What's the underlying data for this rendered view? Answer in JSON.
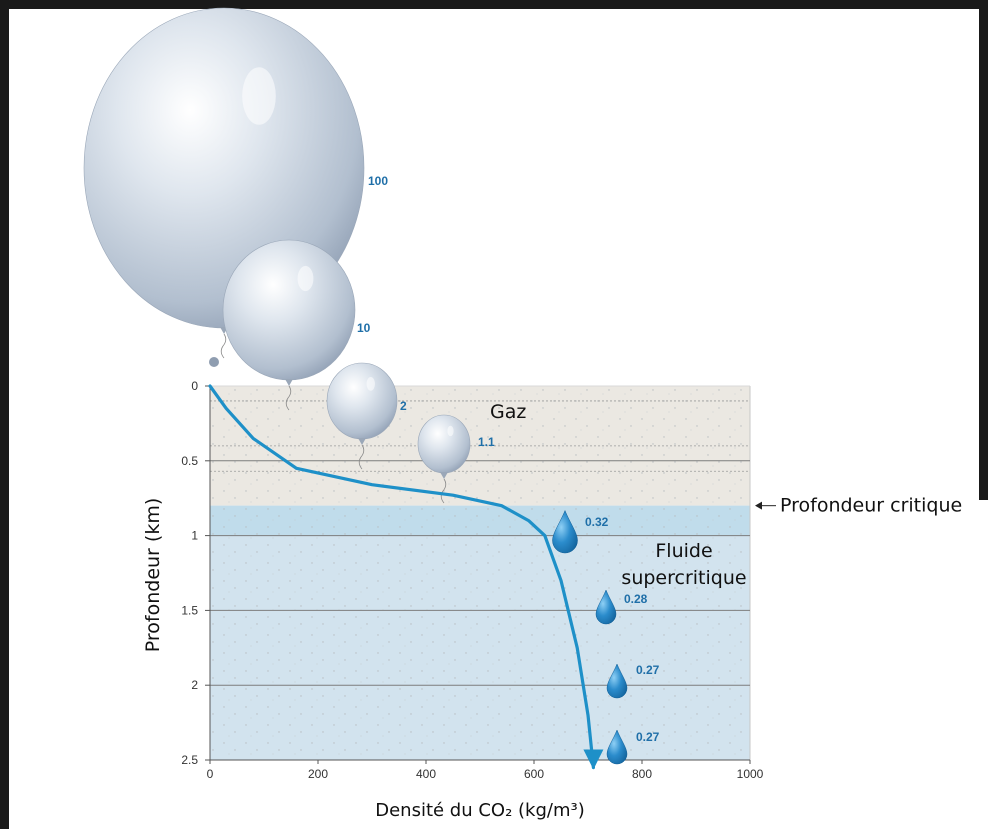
{
  "chart_data": {
    "type": "line",
    "xlabel": "Densité du CO₂ (kg/m³)",
    "ylabel": "Profondeur (km)",
    "xlim": [
      0,
      1000
    ],
    "ylim": [
      2.5,
      0
    ],
    "x_ticks": [
      "0",
      "200",
      "400",
      "600",
      "800",
      "1000"
    ],
    "y_ticks": [
      "0",
      "0.5",
      "1",
      "1.5",
      "2",
      "2.5"
    ],
    "critical_depth_km": 0.8,
    "critical_depth_label": "Profondeur critique",
    "zones": [
      {
        "label": "Gaz"
      },
      {
        "label_line1": "Fluide",
        "label_line2": "supercritique"
      }
    ],
    "series": [
      {
        "x": [
          0,
          30,
          80,
          160,
          300,
          450,
          540,
          590,
          620,
          650,
          680,
          700,
          710
        ],
        "y": [
          0,
          0.15,
          0.35,
          0.55,
          0.66,
          0.73,
          0.8,
          0.9,
          1.0,
          1.3,
          1.75,
          2.2,
          2.55
        ]
      }
    ],
    "volume_markers": [
      {
        "value": "100",
        "kind": "balloon"
      },
      {
        "value": "10",
        "kind": "balloon"
      },
      {
        "value": "2",
        "kind": "balloon"
      },
      {
        "value": "1.1",
        "kind": "balloon"
      },
      {
        "value": "0.32",
        "kind": "drop"
      },
      {
        "value": "0.28",
        "kind": "drop"
      },
      {
        "value": "0.27",
        "kind": "drop"
      },
      {
        "value": "0.27",
        "kind": "drop"
      }
    ],
    "colors": {
      "curve": "#1e90c8",
      "gas_zone": "#ebe8e2",
      "supercritical_zone": "#d2e3ee",
      "critical_band": "#bcd9ea",
      "balloon": "#c9d3e0",
      "drop": "#2b8ccc"
    }
  }
}
